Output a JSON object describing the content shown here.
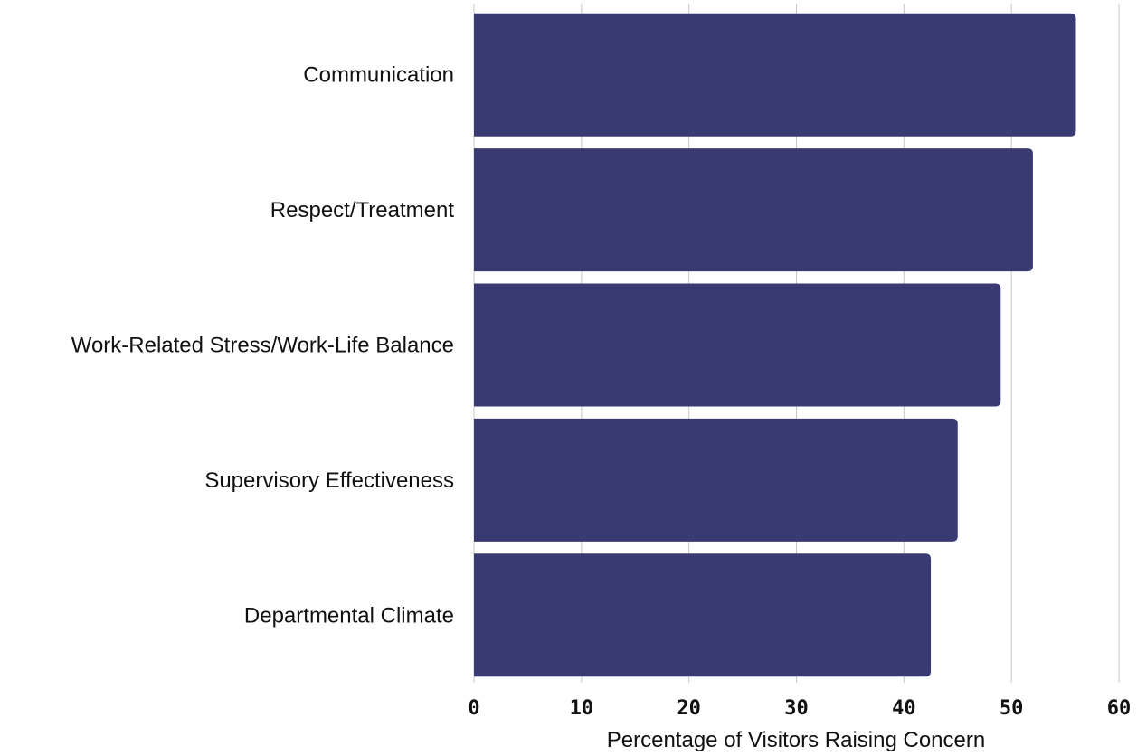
{
  "chart_data": {
    "type": "bar",
    "orientation": "horizontal",
    "title": "",
    "xlabel": "Percentage of Visitors Raising Concern",
    "ylabel": "",
    "categories": [
      "Communication",
      "Respect/Treatment",
      "Work-Related Stress/Work-Life Balance",
      "Supervisory Effectiveness",
      "Departmental Climate"
    ],
    "values": [
      56,
      52,
      49,
      45,
      42.5
    ],
    "xlim": [
      0,
      60
    ],
    "ticks": [
      "0",
      "10",
      "20",
      "30",
      "40",
      "50",
      "60"
    ],
    "tick_values": [
      0,
      10,
      20,
      30,
      40,
      50,
      60
    ],
    "grid": "vertical",
    "legend": "none",
    "bar_color": "#3a3a72",
    "grid_color": "#c8c8c8",
    "text_color": "#111111"
  }
}
